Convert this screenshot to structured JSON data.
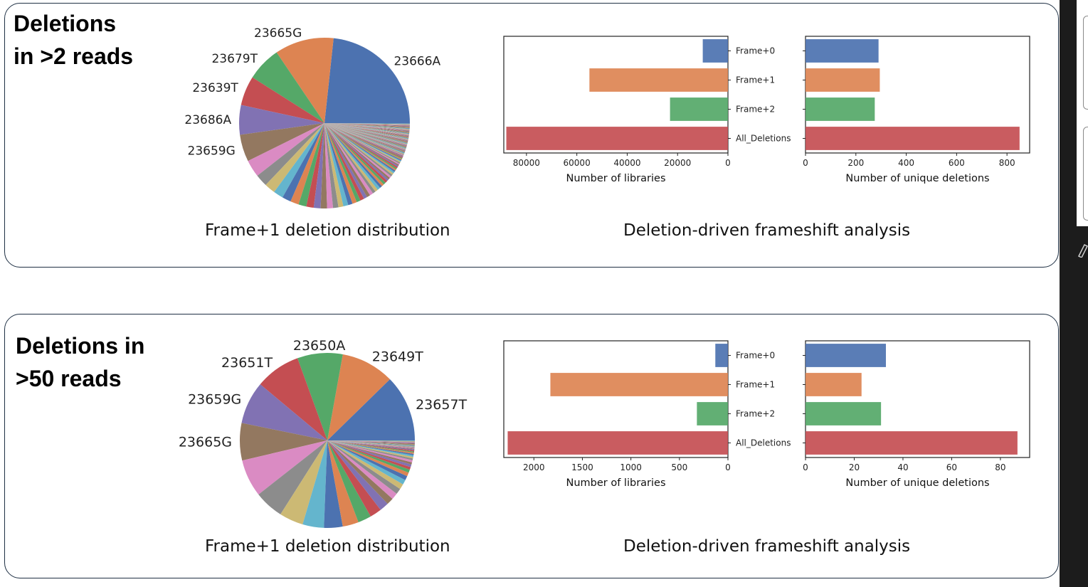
{
  "palette": [
    "#4c72b0",
    "#dd8452",
    "#55a868",
    "#c44e52",
    "#8172b3",
    "#937860",
    "#da8bc3",
    "#8c8c8c",
    "#ccb974",
    "#64b5cd"
  ],
  "panels": [
    {
      "title": "Deletions\nin >2 reads",
      "pie_caption": "Frame+1 deletion distribution",
      "bar_caption": "Deletion-driven frameshift analysis"
    },
    {
      "title": "Deletions in\n>50 reads",
      "pie_caption": "Frame+1 deletion distribution",
      "bar_caption": "Deletion-driven frameshift analysis"
    }
  ],
  "chart_data": [
    {
      "type": "pie",
      "panel": "Deletions in >2 reads",
      "labels": [
        "23666A",
        "23665G",
        "23679T",
        "23639T",
        "23686A",
        "23659G"
      ],
      "values": [
        25,
        12,
        7,
        6,
        6,
        5.5
      ],
      "unlabeled_slices": [
        3.5,
        2.5,
        2.2,
        2,
        1.8,
        1.7,
        1.6,
        1.5,
        1.4,
        1.3,
        1.2,
        1.1,
        1,
        1,
        0.9,
        0.9,
        0.8,
        0.8,
        0.7,
        0.7,
        0.7,
        0.6,
        0.6,
        0.6,
        0.5,
        0.5,
        0.5,
        0.5,
        0.4,
        0.4,
        0.4,
        0.4,
        0.35,
        0.35,
        0.3,
        0.3,
        0.3,
        0.3,
        0.25,
        0.25,
        0.25,
        0.25,
        0.2,
        0.2,
        0.2,
        0.2,
        0.2,
        0.2,
        0.15,
        0.15,
        0.15,
        0.15,
        0.15,
        0.15,
        0.1,
        0.1,
        0.1,
        0.1,
        0.1,
        0.1,
        0.1,
        0.1,
        0.1,
        0.1,
        0.1,
        0.1,
        0.1,
        0.1,
        0.1,
        0.1,
        0.1,
        0.1,
        0.1,
        0.1,
        0.1,
        0.1,
        0.1,
        0.1,
        0.1,
        0.1,
        0.1,
        0.1,
        0.1,
        0.1,
        0.1,
        0.1,
        0.1,
        0.1,
        0.1,
        0.1,
        0.1,
        0.1,
        0.1,
        0.1,
        0.1,
        0.1,
        0.1,
        0.1,
        0.1,
        0.1,
        0.1,
        0.1,
        0.1,
        0.1,
        0.1,
        0.1,
        0.1,
        0.1,
        0.1,
        0.1,
        0.1,
        0.1,
        0.1,
        0.1,
        0.1
      ]
    },
    {
      "type": "bar",
      "orientation": "horizontal",
      "panel": "Deletions in >2 reads",
      "categories": [
        "Frame+0",
        "Frame+1",
        "Frame+2",
        "All_Deletions"
      ],
      "subplots": [
        {
          "xlabel": "Number of libraries",
          "values": [
            10000,
            55000,
            23000,
            88000
          ],
          "xlim": [
            0,
            89000
          ],
          "inverted": true,
          "ticks": [
            80000,
            60000,
            40000,
            20000,
            0
          ]
        },
        {
          "xlabel": "Number of unique deletions",
          "values": [
            290,
            295,
            275,
            850
          ],
          "xlim": [
            0,
            890
          ],
          "inverted": false,
          "ticks": [
            0,
            200,
            400,
            600,
            800
          ]
        }
      ]
    },
    {
      "type": "pie",
      "panel": "Deletions in >50 reads",
      "labels": [
        "23657T",
        "23649T",
        "23650A",
        "23651T",
        "23659G",
        "23665G"
      ],
      "values": [
        12.5,
        10,
        8.5,
        8.5,
        8,
        7
      ],
      "unlabeled_slices": [
        7,
        5.5,
        4.5,
        4,
        3.5,
        3,
        2.5,
        2.2,
        1.7,
        1.3,
        1.2,
        1.1,
        1,
        0.9,
        0.8,
        0.7,
        0.6,
        0.5,
        0.5,
        0.4,
        0.4,
        0.35,
        0.3,
        0.3,
        0.25,
        0.25,
        0.2,
        0.2,
        0.2,
        0.15,
        0.15,
        0.15,
        0.1,
        0.1,
        0.1,
        0.1,
        0.1,
        0.1,
        0.1,
        0.1,
        0.1,
        0.1,
        0.1,
        0.1
      ]
    },
    {
      "type": "bar",
      "orientation": "horizontal",
      "panel": "Deletions in >50 reads",
      "categories": [
        "Frame+0",
        "Frame+1",
        "Frame+2",
        "All_Deletions"
      ],
      "subplots": [
        {
          "xlabel": "Number of libraries",
          "values": [
            130,
            1830,
            320,
            2270
          ],
          "xlim": [
            0,
            2310
          ],
          "inverted": true,
          "ticks": [
            2000,
            1500,
            1000,
            500,
            0
          ]
        },
        {
          "xlabel": "Number of unique deletions",
          "values": [
            33,
            23,
            31,
            87
          ],
          "xlim": [
            0,
            92
          ],
          "inverted": false,
          "ticks": [
            0,
            20,
            40,
            60,
            80
          ]
        }
      ]
    }
  ]
}
